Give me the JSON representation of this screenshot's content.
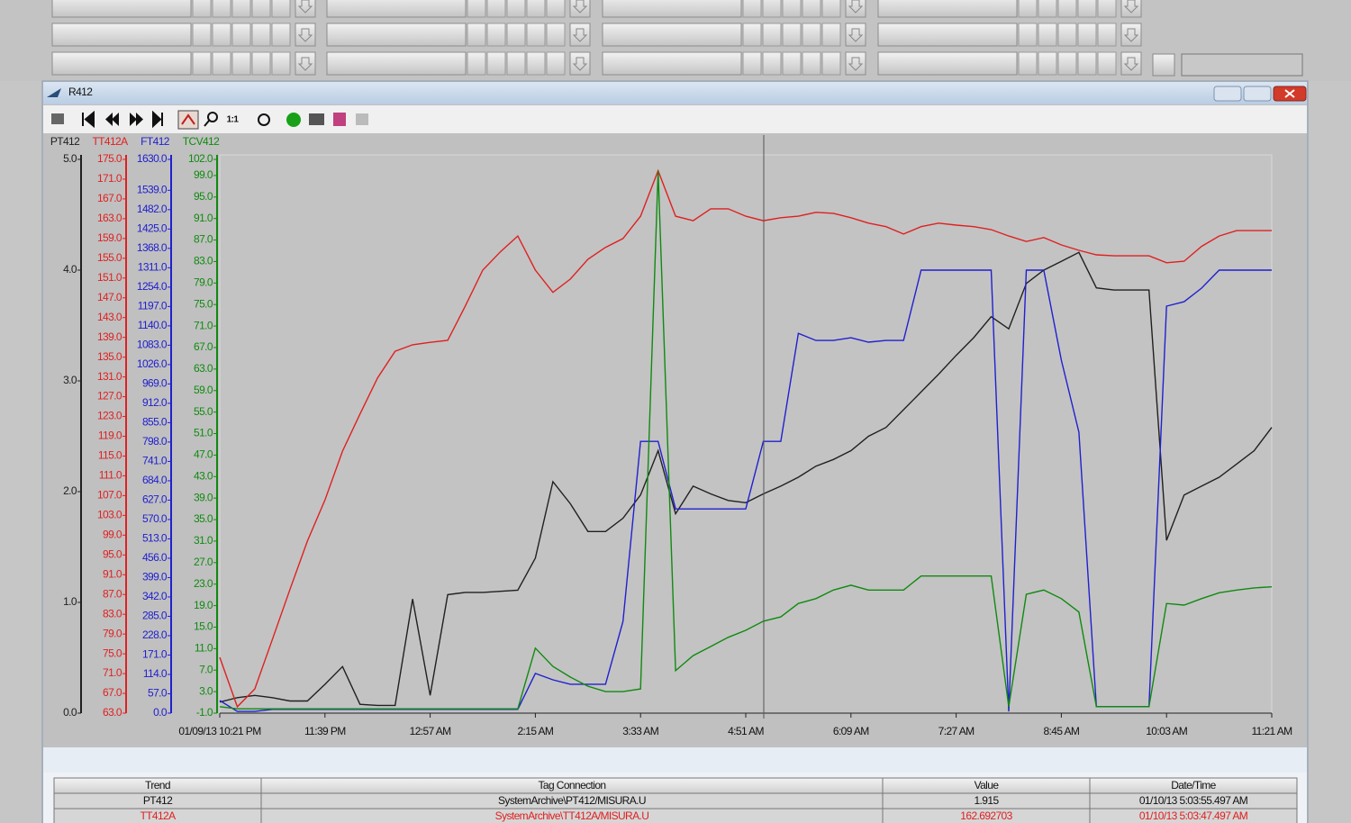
{
  "window": {
    "title": "R412"
  },
  "toolbar": {
    "zoom_label": "1:1"
  },
  "chart_data": {
    "type": "line",
    "x": [
      0,
      13,
      26,
      39,
      52,
      65,
      78,
      91,
      104,
      117,
      130,
      143,
      156,
      169,
      182,
      195,
      208,
      221,
      234,
      247,
      260,
      273,
      286,
      299,
      312,
      325,
      338,
      351,
      364,
      377,
      390,
      403,
      416,
      429,
      442,
      455,
      468,
      481,
      494,
      507,
      520,
      533,
      546,
      559,
      572,
      585,
      598,
      611,
      624,
      637,
      650,
      663,
      676,
      689,
      702,
      715,
      728,
      741,
      754,
      767,
      780
    ],
    "xlim": [
      0,
      780
    ],
    "xticks": [
      {
        "value": 0,
        "label": "01/09/13 10:21 PM"
      },
      {
        "value": 78,
        "label": "11:39 PM"
      },
      {
        "value": 156,
        "label": "12:57 AM"
      },
      {
        "value": 234,
        "label": "2:15 AM"
      },
      {
        "value": 312,
        "label": "3:33 AM"
      },
      {
        "value": 390,
        "label": "4:51 AM"
      },
      {
        "value": 468,
        "label": "6:09 AM"
      },
      {
        "value": 546,
        "label": "7:27 AM"
      },
      {
        "value": 624,
        "label": "8:45 AM"
      },
      {
        "value": 702,
        "label": "10:03 AM"
      },
      {
        "value": 780,
        "label": "11:21 AM"
      }
    ],
    "series": [
      {
        "name": "PT412",
        "color": "#202020",
        "ylim": [
          0,
          5
        ],
        "yticks": [
          {
            "value": 0,
            "label": "0.0"
          },
          {
            "value": 1,
            "label": "1.0"
          },
          {
            "value": 2,
            "label": "2.0"
          },
          {
            "value": 3,
            "label": "3.0"
          },
          {
            "value": 4,
            "label": "4.0"
          },
          {
            "value": 5,
            "label": "5.0"
          }
        ],
        "values": [
          0.1,
          0.14,
          0.16,
          0.14,
          0.11,
          0.11,
          0.26,
          0.42,
          0.08,
          0.07,
          0.07,
          1.03,
          0.16,
          1.07,
          1.09,
          1.09,
          1.1,
          1.11,
          1.4,
          2.09,
          1.89,
          1.64,
          1.64,
          1.76,
          1.97,
          2.37,
          1.8,
          2.05,
          1.98,
          1.92,
          1.9,
          1.98,
          2.05,
          2.13,
          2.23,
          2.29,
          2.37,
          2.5,
          2.58,
          2.74,
          2.9,
          3.06,
          3.23,
          3.39,
          3.58,
          3.47,
          3.88,
          4.0,
          4.08,
          4.16,
          3.84,
          3.82,
          3.82,
          3.82,
          1.56,
          1.97,
          2.05,
          2.13,
          2.25,
          2.37,
          2.58
        ]
      },
      {
        "name": "TT412A",
        "color": "#e02020",
        "ylim": [
          63,
          175
        ],
        "yticks": [
          {
            "value": 63,
            "label": "63.0"
          },
          {
            "value": 67,
            "label": "67.0"
          },
          {
            "value": 71,
            "label": "71.0"
          },
          {
            "value": 75,
            "label": "75.0"
          },
          {
            "value": 79,
            "label": "79.0"
          },
          {
            "value": 83,
            "label": "83.0"
          },
          {
            "value": 87,
            "label": "87.0"
          },
          {
            "value": 91,
            "label": "91.0"
          },
          {
            "value": 95,
            "label": "95.0"
          },
          {
            "value": 99,
            "label": "99.0"
          },
          {
            "value": 103,
            "label": "103.0"
          },
          {
            "value": 107,
            "label": "107.0"
          },
          {
            "value": 111,
            "label": "111.0"
          },
          {
            "value": 115,
            "label": "115.0"
          },
          {
            "value": 119,
            "label": "119.0"
          },
          {
            "value": 123,
            "label": "123.0"
          },
          {
            "value": 127,
            "label": "127.0"
          },
          {
            "value": 131,
            "label": "131.0"
          },
          {
            "value": 135,
            "label": "135.0"
          },
          {
            "value": 139,
            "label": "139.0"
          },
          {
            "value": 143,
            "label": "143.0"
          },
          {
            "value": 147,
            "label": "147.0"
          },
          {
            "value": 151,
            "label": "151.0"
          },
          {
            "value": 155,
            "label": "155.0"
          },
          {
            "value": 159,
            "label": "159.0"
          },
          {
            "value": 163,
            "label": "163.0"
          },
          {
            "value": 167,
            "label": "167.0"
          },
          {
            "value": 171,
            "label": "171.0"
          },
          {
            "value": 175,
            "label": "175.0"
          }
        ],
        "values": [
          74.3,
          64.3,
          67.9,
          77.9,
          88.0,
          97.8,
          106.1,
          116.0,
          123.5,
          130.8,
          136.2,
          137.5,
          138.0,
          138.4,
          145.3,
          152.6,
          156.3,
          159.5,
          152.6,
          148.1,
          150.8,
          154.8,
          157.2,
          159.0,
          163.5,
          172.7,
          163.5,
          162.6,
          165.0,
          165.0,
          163.5,
          162.6,
          163.2,
          163.5,
          164.3,
          164.1,
          163.2,
          162.1,
          161.4,
          159.9,
          161.4,
          162.1,
          161.7,
          161.4,
          160.8,
          159.5,
          158.4,
          159.2,
          157.7,
          156.6,
          155.7,
          155.5,
          155.5,
          155.5,
          154.1,
          154.4,
          157.4,
          159.5,
          160.6,
          160.6,
          160.6
        ]
      },
      {
        "name": "FT412",
        "color": "#2020d0",
        "ylim": [
          0,
          1630
        ],
        "yticks": [
          {
            "value": 0,
            "label": "0.0"
          },
          {
            "value": 57,
            "label": "57.0"
          },
          {
            "value": 114,
            "label": "114.0"
          },
          {
            "value": 171,
            "label": "171.0"
          },
          {
            "value": 228,
            "label": "228.0"
          },
          {
            "value": 285,
            "label": "285.0"
          },
          {
            "value": 342,
            "label": "342.0"
          },
          {
            "value": 399,
            "label": "399.0"
          },
          {
            "value": 456,
            "label": "456.0"
          },
          {
            "value": 513,
            "label": "513.0"
          },
          {
            "value": 570,
            "label": "570.0"
          },
          {
            "value": 627,
            "label": "627.0"
          },
          {
            "value": 684,
            "label": "684.0"
          },
          {
            "value": 741,
            "label": "741.0"
          },
          {
            "value": 798,
            "label": "798.0"
          },
          {
            "value": 855,
            "label": "855.0"
          },
          {
            "value": 912,
            "label": "912.0"
          },
          {
            "value": 969,
            "label": "969.0"
          },
          {
            "value": 1026,
            "label": "1026.0"
          },
          {
            "value": 1083,
            "label": "1083.0"
          },
          {
            "value": 1140,
            "label": "1140.0"
          },
          {
            "value": 1197,
            "label": "1197.0"
          },
          {
            "value": 1254,
            "label": "1254.0"
          },
          {
            "value": 1311,
            "label": "1311.0"
          },
          {
            "value": 1368,
            "label": "1368.0"
          },
          {
            "value": 1425,
            "label": "1425.0"
          },
          {
            "value": 1482,
            "label": "1482.0"
          },
          {
            "value": 1539,
            "label": "1539.0"
          },
          {
            "value": 1630,
            "label": "1630.0"
          }
        ],
        "values": [
          37,
          5,
          5,
          11,
          11,
          11,
          11,
          11,
          11,
          11,
          11,
          11,
          11,
          11,
          11,
          11,
          11,
          11,
          117,
          98,
          85,
          85,
          85,
          270,
          800,
          800,
          601,
          601,
          601,
          601,
          601,
          800,
          800,
          1118,
          1097,
          1097,
          1105,
          1092,
          1097,
          1097,
          1304,
          1304,
          1304,
          1304,
          1304,
          5,
          1304,
          1304,
          1039,
          827,
          19,
          19,
          19,
          19,
          1198,
          1211,
          1251,
          1304,
          1304,
          1304,
          1304
        ]
      },
      {
        "name": "TCV412",
        "color": "#108a10",
        "ylim": [
          -1,
          102
        ],
        "yticks": [
          {
            "value": -1,
            "label": "-1.0"
          },
          {
            "value": 3,
            "label": "3.0"
          },
          {
            "value": 7,
            "label": "7.0"
          },
          {
            "value": 11,
            "label": "11.0"
          },
          {
            "value": 15,
            "label": "15.0"
          },
          {
            "value": 19,
            "label": "19.0"
          },
          {
            "value": 23,
            "label": "23.0"
          },
          {
            "value": 27,
            "label": "27.0"
          },
          {
            "value": 31,
            "label": "31.0"
          },
          {
            "value": 35,
            "label": "35.0"
          },
          {
            "value": 39,
            "label": "39.0"
          },
          {
            "value": 43,
            "label": "43.0"
          },
          {
            "value": 47,
            "label": "47.0"
          },
          {
            "value": 51,
            "label": "51.0"
          },
          {
            "value": 55,
            "label": "55.0"
          },
          {
            "value": 59,
            "label": "59.0"
          },
          {
            "value": 63,
            "label": "63.0"
          },
          {
            "value": 67,
            "label": "67.0"
          },
          {
            "value": 71,
            "label": "71.0"
          },
          {
            "value": 75,
            "label": "75.0"
          },
          {
            "value": 79,
            "label": "79.0"
          },
          {
            "value": 83,
            "label": "83.0"
          },
          {
            "value": 87,
            "label": "87.0"
          },
          {
            "value": 91,
            "label": "91.0"
          },
          {
            "value": 95,
            "label": "95.0"
          },
          {
            "value": 99,
            "label": "99.0"
          },
          {
            "value": 102,
            "label": "102.0"
          }
        ],
        "values": [
          0.2,
          -0.2,
          -0.2,
          -0.2,
          -0.2,
          -0.2,
          -0.2,
          -0.2,
          -0.2,
          -0.2,
          -0.2,
          -0.2,
          -0.2,
          -0.2,
          -0.2,
          -0.2,
          -0.2,
          -0.2,
          11.1,
          7.7,
          5.7,
          4.0,
          3.0,
          3.0,
          3.5,
          99.8,
          6.9,
          9.7,
          11.4,
          13.1,
          14.4,
          16.1,
          16.9,
          19.4,
          20.3,
          21.9,
          22.8,
          21.9,
          21.9,
          21.9,
          24.5,
          24.5,
          24.5,
          24.5,
          24.5,
          0.2,
          21.1,
          21.9,
          20.3,
          17.8,
          0.2,
          0.2,
          0.2,
          0.2,
          19.4,
          19.1,
          20.3,
          21.4,
          21.9,
          22.3,
          22.5
        ]
      }
    ]
  },
  "table": {
    "header": [
      "Trend",
      "Tag Connection",
      "Value",
      "Date/Time"
    ],
    "rows": [
      [
        "PT412",
        "SystemArchive\\PT412/MISURA.U",
        "1.915",
        "01/10/13 5:03:55.497 AM"
      ],
      [
        "TT412A",
        "SystemArchive\\TT412A/MISURA.U",
        "162.692703",
        "01/10/13 5:03:47.497 AM"
      ]
    ]
  }
}
